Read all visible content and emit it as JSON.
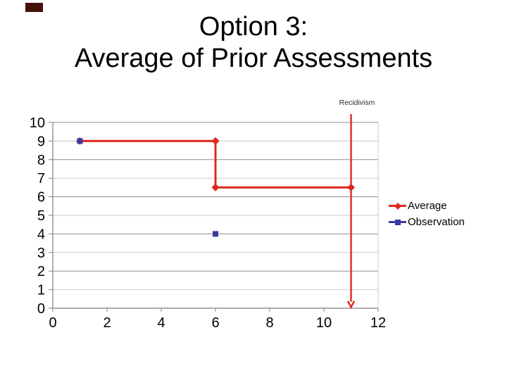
{
  "slide": {
    "title_line1": "Option 3:",
    "title_line2": "Average of Prior Assessments"
  },
  "decor": {
    "corner_mark_color": "#451008"
  },
  "chart_data": {
    "type": "line",
    "title": "Option 3: Average of Prior Assessments",
    "xlabel": "",
    "ylabel": "",
    "x_axis": {
      "range": [
        0,
        12
      ],
      "ticks": [
        0,
        2,
        4,
        6,
        8,
        10,
        12
      ]
    },
    "y_axis": {
      "range": [
        0,
        10
      ],
      "ticks": [
        0,
        1,
        2,
        3,
        4,
        5,
        6,
        7,
        8,
        9,
        10
      ]
    },
    "grid": {
      "major_color": "#8f8f8f",
      "minor_color": "#cbcbcb",
      "axis_color": "#7f7f7f"
    },
    "series": [
      {
        "name": "Average",
        "color": "#dc2a20",
        "marker": "diamond",
        "line": true,
        "points": [
          [
            1,
            9
          ],
          [
            6,
            9
          ],
          [
            6,
            6.5
          ],
          [
            11,
            6.5
          ]
        ]
      },
      {
        "name": "Observation",
        "color": "#3a3aa0",
        "marker": "square",
        "line": false,
        "points": [
          [
            1,
            9
          ],
          [
            6,
            4
          ]
        ]
      }
    ],
    "annotation": {
      "label": "Recidivism",
      "x": 11,
      "from_y": 10.45,
      "to_y": 0.05,
      "color": "#dc2a20"
    },
    "legend": {
      "entries": [
        "Average",
        "Observation"
      ],
      "position": "right"
    }
  }
}
